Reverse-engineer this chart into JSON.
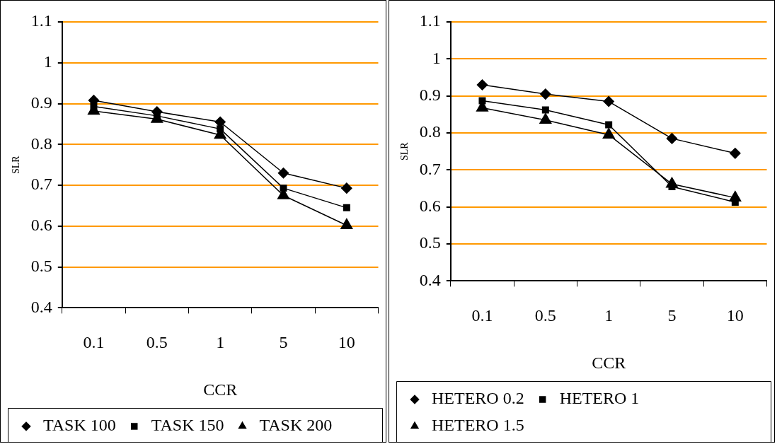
{
  "chart_data": [
    {
      "type": "line",
      "xlabel": "CCR",
      "ylabel": "SLR",
      "categories": [
        "0.1",
        "0.5",
        "1",
        "5",
        "10"
      ],
      "ylim": [
        0.4,
        1.1
      ],
      "yticks": [
        0.4,
        0.5,
        0.6,
        0.7,
        0.8,
        0.9,
        1,
        1.1
      ],
      "grid": "y",
      "legend": "bottom",
      "series": [
        {
          "name": "TASK 100",
          "color": "#000000",
          "marker": "diamond",
          "values": [
            0.908,
            0.88,
            0.855,
            0.73,
            0.693
          ]
        },
        {
          "name": "TASK 150",
          "color": "#000000",
          "marker": "square",
          "values": [
            0.893,
            0.87,
            0.838,
            0.693,
            0.645
          ]
        },
        {
          "name": "TASK 200",
          "color": "#000000",
          "marker": "triangle",
          "values": [
            0.882,
            0.862,
            0.823,
            0.675,
            0.602
          ]
        }
      ]
    },
    {
      "type": "line",
      "xlabel": "CCR",
      "ylabel": "SLR",
      "categories": [
        "0.1",
        "0.5",
        "1",
        "5",
        "10"
      ],
      "ylim": [
        0.4,
        1.1
      ],
      "yticks": [
        0.4,
        0.5,
        0.6,
        0.7,
        0.8,
        0.9,
        1,
        1.1
      ],
      "grid": "y",
      "legend": "bottom",
      "series": [
        {
          "name": "HETERO 0.2",
          "color": "#000000",
          "marker": "diamond",
          "values": [
            0.93,
            0.905,
            0.885,
            0.785,
            0.745
          ]
        },
        {
          "name": "HETERO 1",
          "color": "#000000",
          "marker": "square",
          "values": [
            0.887,
            0.862,
            0.822,
            0.655,
            0.613
          ]
        },
        {
          "name": "HETERO 1.5",
          "color": "#000000",
          "marker": "triangle",
          "values": [
            0.868,
            0.835,
            0.795,
            0.662,
            0.625
          ]
        }
      ]
    }
  ]
}
